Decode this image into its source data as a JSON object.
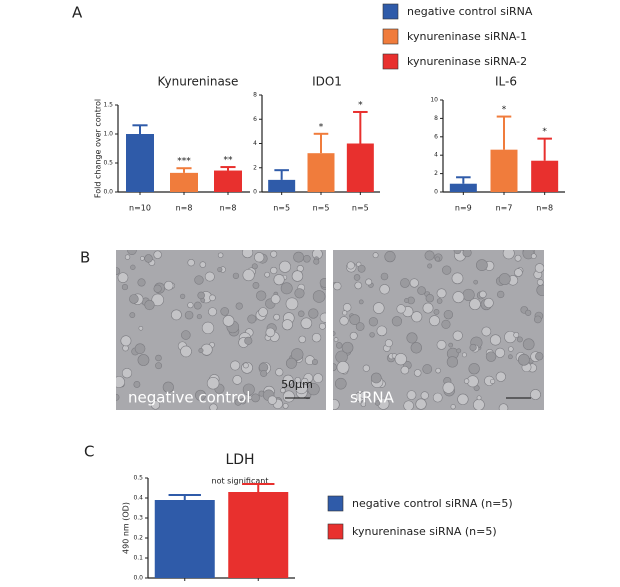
{
  "panels": {
    "a": "A",
    "b": "B",
    "c": "C"
  },
  "legends": [
    [
      {
        "name": "negative control siRNA",
        "color": "#2f5ba9"
      },
      {
        "name": "kynureninase siRNA-1",
        "color": "#f07c3c"
      },
      {
        "name": "kynureninase siRNA-2",
        "color": "#e8302e"
      }
    ],
    [
      {
        "name": "negative control siRNA (n=5)",
        "color": "#2f5ba9"
      },
      {
        "name": "kynureninase siRNA (n=5)",
        "color": "#e8302e"
      }
    ]
  ],
  "micrographs": [
    {
      "caption": "negative control",
      "scale": "50µm"
    },
    {
      "caption": "siRNA"
    }
  ],
  "chart_data": [
    {
      "type": "bar",
      "title": "Kynureninase",
      "y_label": "Fold change over control",
      "categories": [
        "n=10",
        "n=8",
        "n=8"
      ],
      "values": [
        1.0,
        0.33,
        0.37
      ],
      "errors": [
        0.15,
        0.08,
        0.06
      ],
      "annotations": [
        null,
        "***",
        "**"
      ],
      "colors": [
        "#2f5ba9",
        "#f07c3c",
        "#e8302e"
      ],
      "ylim": [
        0,
        1.5
      ],
      "yticks": [
        {
          "value": 0,
          "label": "0.0"
        },
        {
          "value": 0.5,
          "label": "0.5"
        },
        {
          "value": 1,
          "label": "1.0"
        },
        {
          "value": 1.5,
          "label": "1.5"
        }
      ]
    },
    {
      "type": "bar",
      "title": "IDO1",
      "categories": [
        "n=5",
        "n=5",
        "n=5"
      ],
      "values": [
        1.0,
        3.2,
        4.0
      ],
      "errors": [
        0.8,
        1.6,
        2.6
      ],
      "annotations": [
        null,
        "*",
        "*"
      ],
      "colors": [
        "#2f5ba9",
        "#f07c3c",
        "#e8302e"
      ],
      "ylim": [
        0,
        8
      ],
      "yticks": [
        0,
        2,
        4,
        6,
        8
      ]
    },
    {
      "type": "bar",
      "title": "IL-6",
      "categories": [
        "n=9",
        "n=7",
        "n=8"
      ],
      "values": [
        0.9,
        4.6,
        3.4
      ],
      "errors": [
        0.7,
        3.6,
        2.4
      ],
      "annotations": [
        null,
        "*",
        "*"
      ],
      "colors": [
        "#2f5ba9",
        "#f07c3c",
        "#e8302e"
      ],
      "ylim": [
        0,
        10
      ],
      "yticks": [
        0,
        2,
        4,
        6,
        8,
        10
      ]
    },
    {
      "type": "bar",
      "title": "LDH",
      "subtitle": "not significant",
      "y_label": "490 nm (OD)",
      "categories": [
        null,
        null
      ],
      "values": [
        0.39,
        0.43
      ],
      "errors": [
        0.025,
        0.04
      ],
      "colors": [
        "#2f5ba9",
        "#e8302e"
      ],
      "ylim": [
        0,
        0.5
      ],
      "yticks": [
        {
          "value": 0,
          "label": "0.0"
        },
        {
          "value": 0.1,
          "label": "0.1"
        },
        {
          "value": 0.2,
          "label": "0.2"
        },
        {
          "value": 0.3,
          "label": "0.3"
        },
        {
          "value": 0.4,
          "label": "0.4"
        },
        {
          "value": 0.5,
          "label": "0.5"
        }
      ]
    }
  ]
}
